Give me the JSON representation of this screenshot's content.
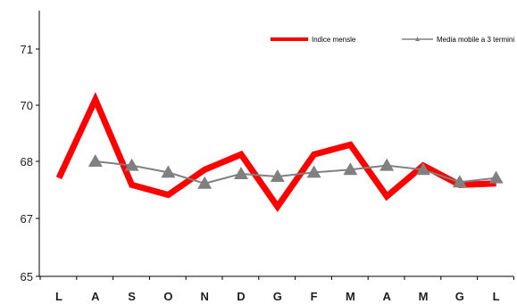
{
  "chart_data": {
    "type": "line",
    "categories": [
      "L",
      "A",
      "S",
      "O",
      "N",
      "D",
      "G",
      "F",
      "M",
      "A",
      "M",
      "G",
      "L"
    ],
    "series": [
      {
        "name": "Indice mensle",
        "color": "#ff0000",
        "values": [
          67.4,
          70.1,
          67.15,
          66.8,
          67.7,
          68.25,
          66.4,
          68.25,
          68.6,
          66.75,
          67.85,
          67.15,
          67.2
        ]
      },
      {
        "name": "Media mobile a 3 termini",
        "color": "#808080",
        "marker": "triangle",
        "values": [
          null,
          68.0,
          67.85,
          67.6,
          67.2,
          67.55,
          67.45,
          67.6,
          67.7,
          67.85,
          67.7,
          67.25,
          67.4
        ]
      }
    ],
    "y_ticks": [
      "65",
      "67",
      "68",
      "70",
      "71"
    ],
    "ylim": [
      66.0,
      71.0
    ],
    "legend_position": "top-right",
    "grid": false,
    "title": "",
    "xlabel": "",
    "ylabel": ""
  }
}
